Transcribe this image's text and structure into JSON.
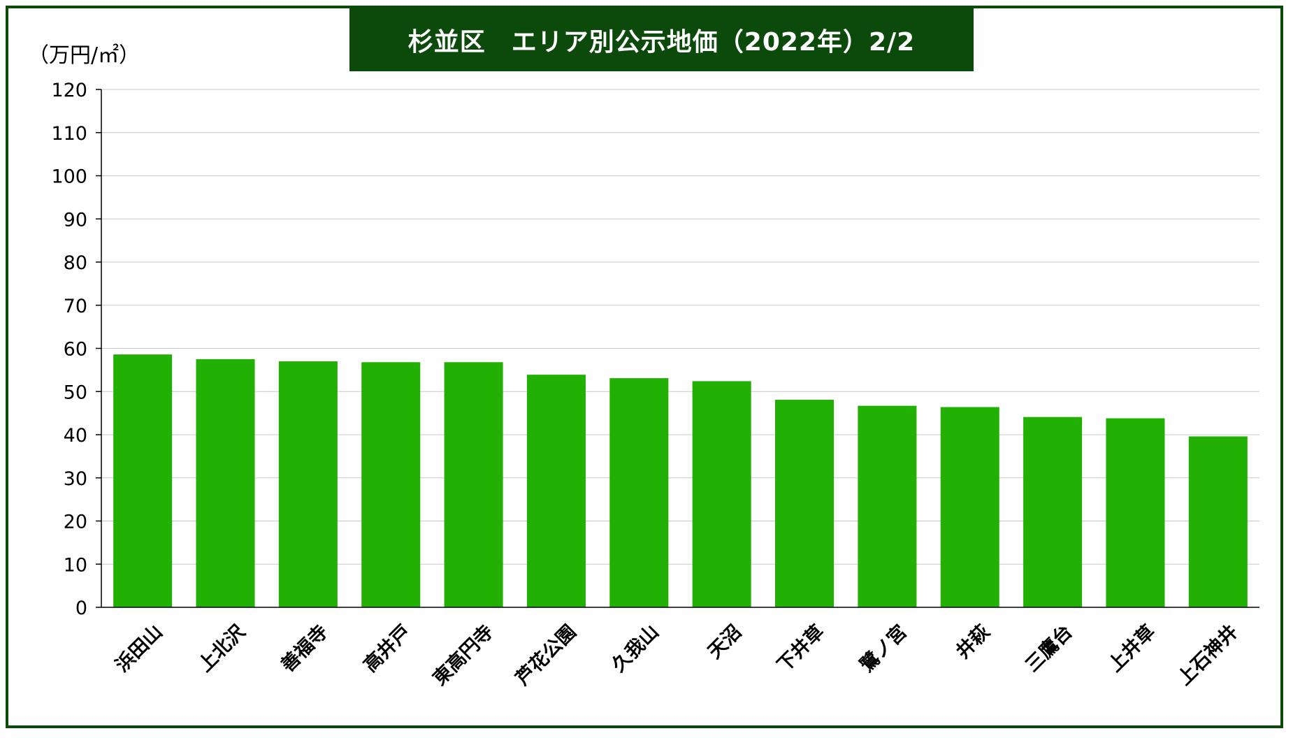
{
  "chart_data": {
    "type": "bar",
    "title": "杉並区　エリア別公示地価（2022年）2/2",
    "ylabel": "（万円/㎡）",
    "xlabel": "",
    "ylim": [
      0,
      120
    ],
    "yticks": [
      0,
      10,
      20,
      30,
      40,
      50,
      60,
      70,
      80,
      90,
      100,
      110,
      120
    ],
    "grid": true,
    "categories": [
      "浜田山",
      "上北沢",
      "善福寺",
      "高井戸",
      "東高円寺",
      "芦花公園",
      "久我山",
      "天沼",
      "下井草",
      "鷺ノ宮",
      "井萩",
      "三鷹台",
      "上井草",
      "上石神井"
    ],
    "values": [
      58.6,
      57.5,
      57.0,
      56.8,
      56.8,
      53.9,
      53.1,
      52.4,
      48.1,
      46.7,
      46.4,
      44.1,
      43.8,
      39.6
    ],
    "bar_color": "#22b005",
    "title_bg": "#0b4a0b"
  }
}
